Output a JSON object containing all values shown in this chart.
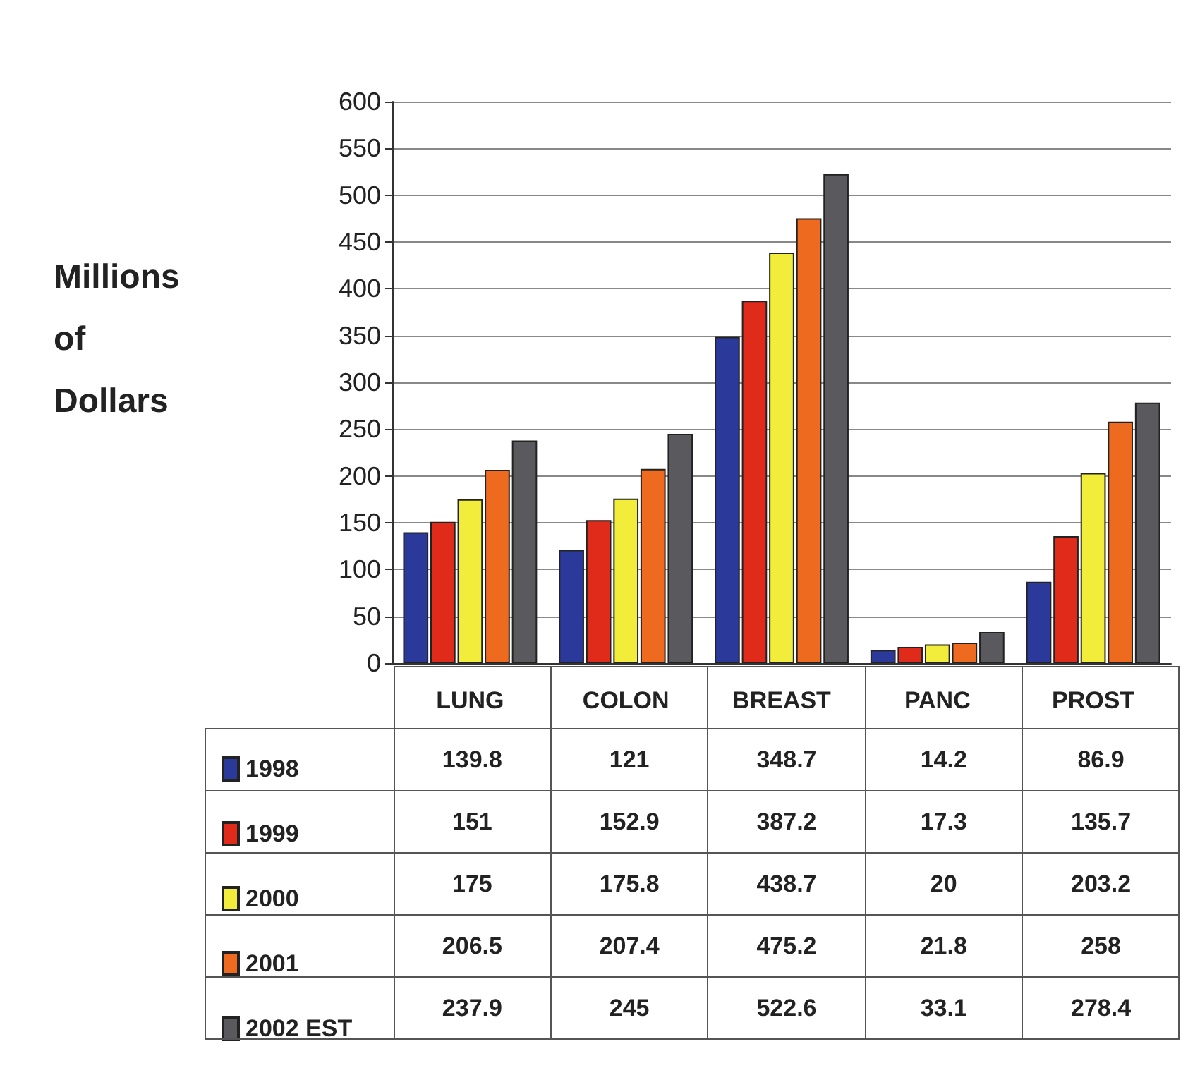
{
  "chart_data": {
    "type": "bar",
    "ylabel": "Millions of Dollars",
    "categories": [
      "LUNG",
      "COLON",
      "BREAST",
      "PANC",
      "PROST"
    ],
    "series": [
      {
        "name": "1998",
        "color": "#2b3a9a",
        "values": [
          139.8,
          121,
          348.7,
          14.2,
          86.9
        ]
      },
      {
        "name": "1999",
        "color": "#e02a1a",
        "values": [
          151,
          152.9,
          387.2,
          17.3,
          135.7
        ]
      },
      {
        "name": "2000",
        "color": "#f2ec3a",
        "values": [
          175,
          175.8,
          438.7,
          20,
          203.2
        ]
      },
      {
        "name": "2001",
        "color": "#ee6a1e",
        "values": [
          206.5,
          207.4,
          475.2,
          21.8,
          258
        ]
      },
      {
        "name": "2002 EST",
        "color": "#5a5a5e",
        "values": [
          237.9,
          245,
          522.6,
          33.1,
          278.4
        ]
      }
    ],
    "ylim": [
      0,
      600
    ],
    "yticks": [
      0,
      50,
      100,
      150,
      200,
      250,
      300,
      350,
      400,
      450,
      500,
      550,
      600
    ],
    "grid": "y",
    "legend": "bottom left",
    "data_labels": true
  }
}
